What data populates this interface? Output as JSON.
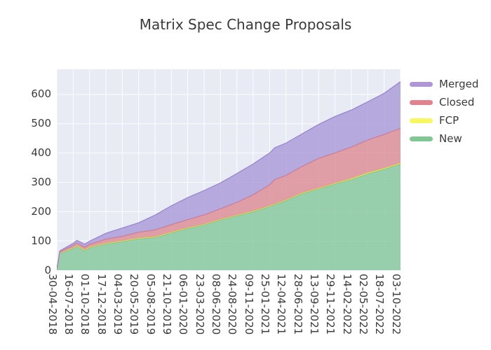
{
  "title": "Matrix Spec Change Proposals",
  "chart_data": {
    "type": "area",
    "stacked": true,
    "title": "Matrix Spec Change Proposals",
    "plot_bg_color": "#e8ebf4",
    "grid_color": "#ffffff",
    "text_color": "#3a3a3a",
    "x_axis": {
      "tick_labels": [
        "30-04-2018",
        "16-07-2018",
        "01-10-2018",
        "17-12-2018",
        "04-03-2019",
        "20-05-2019",
        "05-08-2019",
        "21-10-2019",
        "06-01-2020",
        "23-03-2020",
        "08-06-2020",
        "24-08-2020",
        "09-11-2020",
        "25-01-2021",
        "12-04-2021",
        "28-06-2021",
        "13-09-2021",
        "29-11-2021",
        "14-02-2022",
        "02-05-2022",
        "18-07-2022",
        "03-10-2022"
      ],
      "tick_day_offsets": [
        0,
        77,
        154,
        231,
        308,
        385,
        462,
        539,
        616,
        693,
        770,
        847,
        924,
        1001,
        1078,
        1155,
        1232,
        1309,
        1386,
        1463,
        1540,
        1617
      ],
      "total_days": 1617,
      "tick_label_rotation_deg": 90
    },
    "y_axis": {
      "tick_labels": [
        "0",
        "100",
        "200",
        "300",
        "400",
        "500",
        "600"
      ],
      "tick_values": [
        0,
        100,
        200,
        300,
        400,
        500,
        600
      ],
      "range": [
        0,
        686
      ],
      "grid": true
    },
    "legend": {
      "position": "right-outside",
      "entries": [
        {
          "label": "Merged",
          "color": "#b095d8"
        },
        {
          "label": "Closed",
          "color": "#e2828c"
        },
        {
          "label": "FCP",
          "color": "#f7f75f"
        },
        {
          "label": "New",
          "color": "#80c794"
        }
      ]
    },
    "stack_order_bottom_to_top": [
      "New",
      "FCP",
      "Closed",
      "Merged"
    ],
    "sample_day_offsets": [
      0,
      14,
      77,
      95,
      131,
      154,
      231,
      308,
      385,
      462,
      539,
      616,
      693,
      770,
      847,
      924,
      1001,
      1025,
      1078,
      1155,
      1232,
      1309,
      1386,
      1463,
      1540,
      1617
    ],
    "series": [
      {
        "name": "New",
        "fill": "#85c79b",
        "edge": "#69bd85",
        "values": [
          2,
          58,
          74,
          82,
          67,
          77,
          90,
          98,
          108,
          112,
          128,
          143,
          155,
          172,
          186,
          200,
          218,
          224,
          238,
          262,
          278,
          295,
          310,
          330,
          345,
          363
        ]
      },
      {
        "name": "FCP",
        "fill": "#f5f353",
        "edge": "#eeea35",
        "values": [
          0,
          1,
          2,
          2,
          2,
          2,
          2,
          2,
          2,
          2,
          2,
          2,
          2,
          2,
          2,
          2,
          2,
          2,
          2,
          2,
          2,
          2,
          3,
          3,
          3,
          3
        ]
      },
      {
        "name": "Closed",
        "fill": "#dd8b94",
        "edge": "#d26d7b",
        "values": [
          1,
          4,
          9,
          9,
          10,
          10,
          14,
          16,
          20,
          24,
          26,
          28,
          32,
          36,
          44,
          56,
          72,
          84,
          84,
          91,
          102,
          104,
          108,
          112,
          116,
          119
        ]
      },
      {
        "name": "Merged",
        "fill": "#a99ad9",
        "edge": "#9783cf",
        "values": [
          1,
          3,
          7,
          9,
          10,
          10,
          20,
          28,
          32,
          50,
          64,
          75,
          83,
          88,
          98,
          105,
          108,
          108,
          110,
          111,
          116,
          124,
          126,
          130,
          140,
          159
        ]
      }
    ],
    "end_totals": {
      "New": 363,
      "FCP": 3,
      "Closed": 119,
      "Merged": 159,
      "total": 644
    }
  }
}
